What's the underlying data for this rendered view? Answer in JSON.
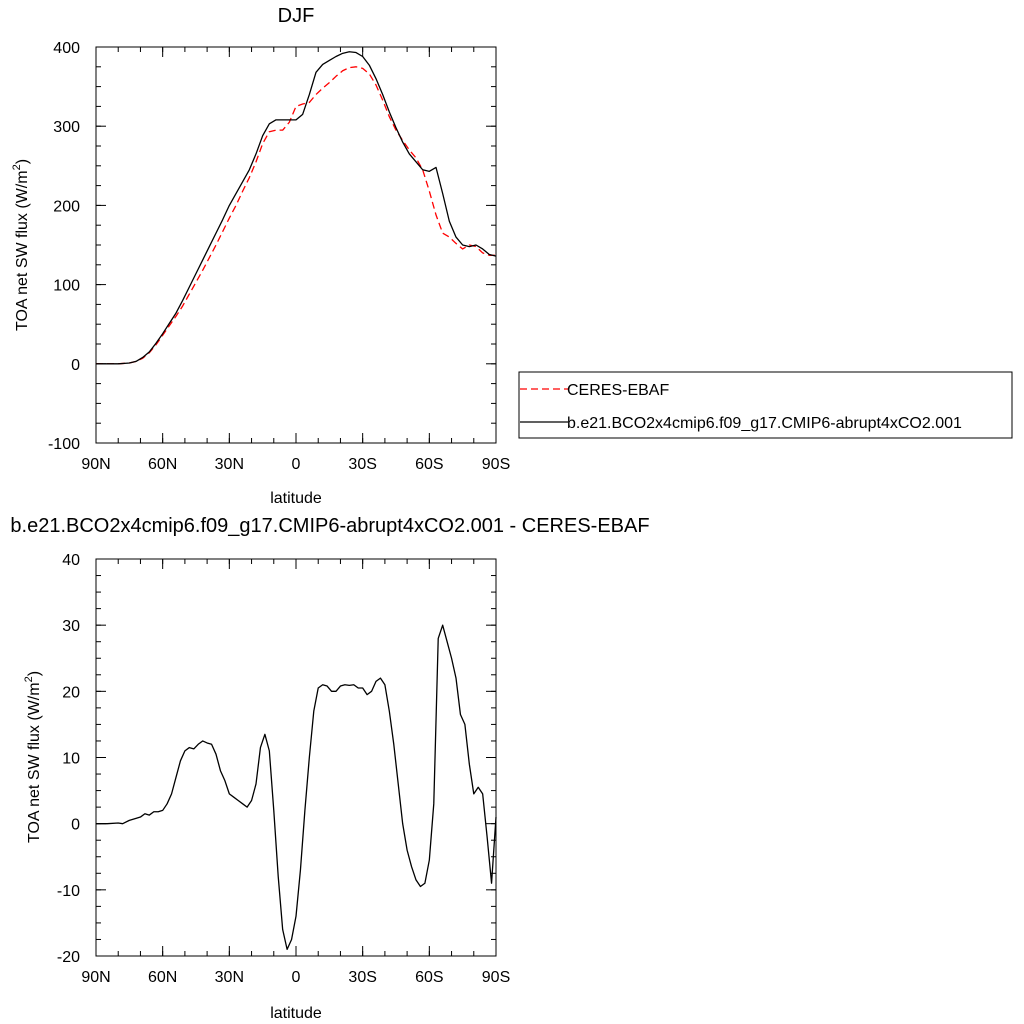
{
  "chart_data": [
    {
      "type": "line",
      "title": "DJF",
      "xlabel": "latitude",
      "ylabel": "TOA net SW flux (W/m",
      "ylabel_sup": "2",
      "ylabel_close": ")",
      "xlim": [
        90,
        -90
      ],
      "ylim": [
        -100,
        400
      ],
      "x_ticks": [
        90,
        60,
        30,
        0,
        -30,
        -60,
        -90
      ],
      "x_tick_labels": [
        "90N",
        "60N",
        "30N",
        "0",
        "30S",
        "60S",
        "90S"
      ],
      "y_ticks": [
        -100,
        0,
        100,
        200,
        300,
        400
      ],
      "y_tick_labels": [
        "-100",
        "0",
        "100",
        "200",
        "300",
        "400"
      ],
      "legend_position": "right",
      "series": [
        {
          "name": "CERES-EBAF",
          "color": "#ff0000",
          "dash": "dashed",
          "x": [
            90,
            85,
            80,
            75,
            72,
            69,
            66,
            63,
            60,
            57,
            54,
            51,
            48,
            45,
            42,
            39,
            36,
            33,
            30,
            27,
            24,
            21,
            18,
            15,
            12,
            9,
            6,
            3,
            0,
            -3,
            -6,
            -9,
            -12,
            -15,
            -18,
            -21,
            -24,
            -27,
            -30,
            -33,
            -36,
            -39,
            -42,
            -45,
            -48,
            -51,
            -54,
            -57,
            -60,
            -63,
            -66,
            -69,
            -72,
            -75,
            -78,
            -81,
            -84,
            -87,
            -90
          ],
          "values": [
            0,
            0,
            0,
            1,
            3,
            7,
            14,
            24,
            36,
            48,
            60,
            73,
            88,
            103,
            118,
            134,
            150,
            167,
            184,
            200,
            218,
            235,
            255,
            278,
            293,
            295,
            295,
            305,
            325,
            328,
            330,
            340,
            348,
            355,
            363,
            370,
            374,
            375,
            373,
            366,
            352,
            333,
            312,
            295,
            282,
            270,
            260,
            245,
            218,
            188,
            165,
            160,
            152,
            145,
            150,
            148,
            140,
            137,
            137
          ]
        },
        {
          "name": "b.e21.BCO2x4cmip6.f09_g17.CMIP6-abrupt4xCO2.001",
          "color": "#000000",
          "dash": "solid",
          "x": [
            90,
            85,
            80,
            75,
            72,
            69,
            66,
            63,
            60,
            57,
            54,
            51,
            48,
            45,
            42,
            39,
            36,
            33,
            30,
            27,
            24,
            21,
            18,
            15,
            12,
            9,
            6,
            3,
            0,
            -3,
            -6,
            -9,
            -12,
            -15,
            -18,
            -21,
            -24,
            -27,
            -30,
            -33,
            -36,
            -39,
            -42,
            -45,
            -48,
            -51,
            -54,
            -57,
            -60,
            -63,
            -66,
            -69,
            -72,
            -75,
            -78,
            -81,
            -84,
            -87,
            -90
          ],
          "values": [
            0,
            0,
            0,
            1,
            3,
            8,
            15,
            26,
            38,
            51,
            64,
            80,
            97,
            114,
            131,
            148,
            165,
            182,
            200,
            215,
            230,
            245,
            265,
            288,
            303,
            308,
            308,
            308,
            308,
            315,
            340,
            368,
            378,
            383,
            388,
            392,
            394,
            393,
            388,
            377,
            360,
            340,
            318,
            298,
            280,
            265,
            255,
            245,
            243,
            248,
            215,
            180,
            160,
            150,
            148,
            150,
            145,
            138,
            136
          ]
        }
      ]
    },
    {
      "type": "line",
      "title": "b.e21.BCO2x4cmip6.f09_g17.CMIP6-abrupt4xCO2.001 - CERES-EBAF",
      "xlabel": "latitude",
      "ylabel": "TOA net SW flux (W/m",
      "ylabel_sup": "2",
      "ylabel_close": ")",
      "xlim": [
        90,
        -90
      ],
      "ylim": [
        -20,
        40
      ],
      "x_ticks": [
        90,
        60,
        30,
        0,
        -30,
        -60,
        -90
      ],
      "x_tick_labels": [
        "90N",
        "60N",
        "30N",
        "0",
        "30S",
        "60S",
        "90S"
      ],
      "y_ticks": [
        -20,
        -10,
        0,
        10,
        20,
        30,
        40
      ],
      "y_tick_labels": [
        "-20",
        "-10",
        "0",
        "10",
        "20",
        "30",
        "40"
      ],
      "series": [
        {
          "color": "#000000",
          "dash": "solid",
          "x": [
            90,
            85,
            80,
            78,
            75,
            72,
            70,
            68,
            66,
            64,
            62,
            60,
            58,
            56,
            54,
            52,
            50,
            48,
            46,
            44,
            42,
            40,
            38,
            36,
            34,
            32,
            30,
            28,
            26,
            24,
            22,
            20,
            18,
            16,
            14,
            12,
            10,
            8,
            6,
            4,
            2,
            0,
            -2,
            -4,
            -6,
            -8,
            -10,
            -12,
            -14,
            -16,
            -18,
            -20,
            -22,
            -24,
            -26,
            -28,
            -30,
            -32,
            -34,
            -36,
            -38,
            -40,
            -42,
            -44,
            -46,
            -48,
            -50,
            -52,
            -54,
            -56,
            -58,
            -60,
            -62,
            -64,
            -66,
            -68,
            -70,
            -72,
            -74,
            -76,
            -78,
            -80,
            -82,
            -84,
            -86,
            -88,
            -90
          ],
          "values": [
            0,
            0,
            0.1,
            0,
            0.5,
            0.8,
            1.0,
            1.5,
            1.3,
            1.8,
            1.8,
            2.0,
            3.0,
            4.5,
            7.0,
            9.5,
            11.0,
            11.5,
            11.3,
            12.0,
            12.5,
            12.2,
            12.0,
            10.5,
            8.0,
            6.5,
            4.5,
            4.0,
            3.5,
            3.0,
            2.5,
            3.5,
            6.0,
            11.5,
            13.5,
            11.0,
            2.0,
            -8.0,
            -16.0,
            -19.0,
            -17.5,
            -14.0,
            -7.0,
            2.0,
            10.0,
            17.0,
            20.5,
            21.0,
            20.8,
            20.0,
            20.0,
            20.8,
            21.0,
            20.9,
            21.0,
            20.5,
            20.5,
            19.5,
            20.0,
            21.5,
            22.0,
            21.0,
            17.0,
            12.0,
            6.0,
            0.0,
            -4.0,
            -6.5,
            -8.5,
            -9.5,
            -9.0,
            -5.5,
            3.0,
            28.0,
            30.0,
            27.5,
            25.0,
            22.0,
            16.5,
            15.0,
            9.0,
            4.5,
            5.5,
            4.5,
            -2.0,
            -9.0,
            1.0
          ]
        }
      ]
    }
  ]
}
